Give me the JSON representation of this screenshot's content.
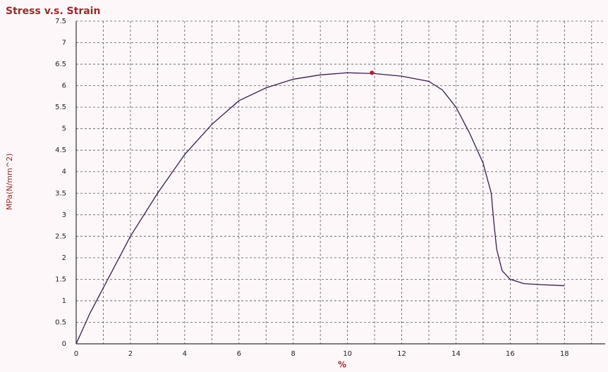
{
  "chart_data": {
    "type": "line",
    "title": "Stress v.s. Strain",
    "x_label": "%",
    "y_label": "MPa(N/mm^2)",
    "x": [
      0,
      0.5,
      1,
      2,
      3,
      4,
      5,
      6,
      7,
      8,
      9,
      10,
      11,
      12,
      13,
      13.5,
      14,
      14.5,
      15,
      15.3,
      15.4,
      15.5,
      15.7,
      16,
      16.5,
      17,
      18
    ],
    "series": [
      {
        "color": "#3a1a4a",
        "values": [
          0,
          0.7,
          1.3,
          2.5,
          3.5,
          4.4,
          5.1,
          5.65,
          5.95,
          6.15,
          6.25,
          6.3,
          6.28,
          6.22,
          6.1,
          5.9,
          5.5,
          4.9,
          4.2,
          3.5,
          2.8,
          2.2,
          1.7,
          1.5,
          1.4,
          1.38,
          1.35
        ]
      }
    ],
    "marker": {
      "x": 10.9,
      "y": 6.3,
      "color": "#b0202a"
    },
    "xlim": [
      0,
      19.5
    ],
    "xticks": [
      0,
      2,
      4,
      6,
      8,
      10,
      12,
      14,
      16,
      18
    ],
    "ylim": [
      0,
      7.5
    ],
    "yticks": [
      0,
      0.5,
      1,
      1.5,
      2,
      2.5,
      3,
      3.5,
      4,
      4.5,
      5,
      5.5,
      6,
      6.5,
      7,
      7.5
    ],
    "grid": true
  }
}
